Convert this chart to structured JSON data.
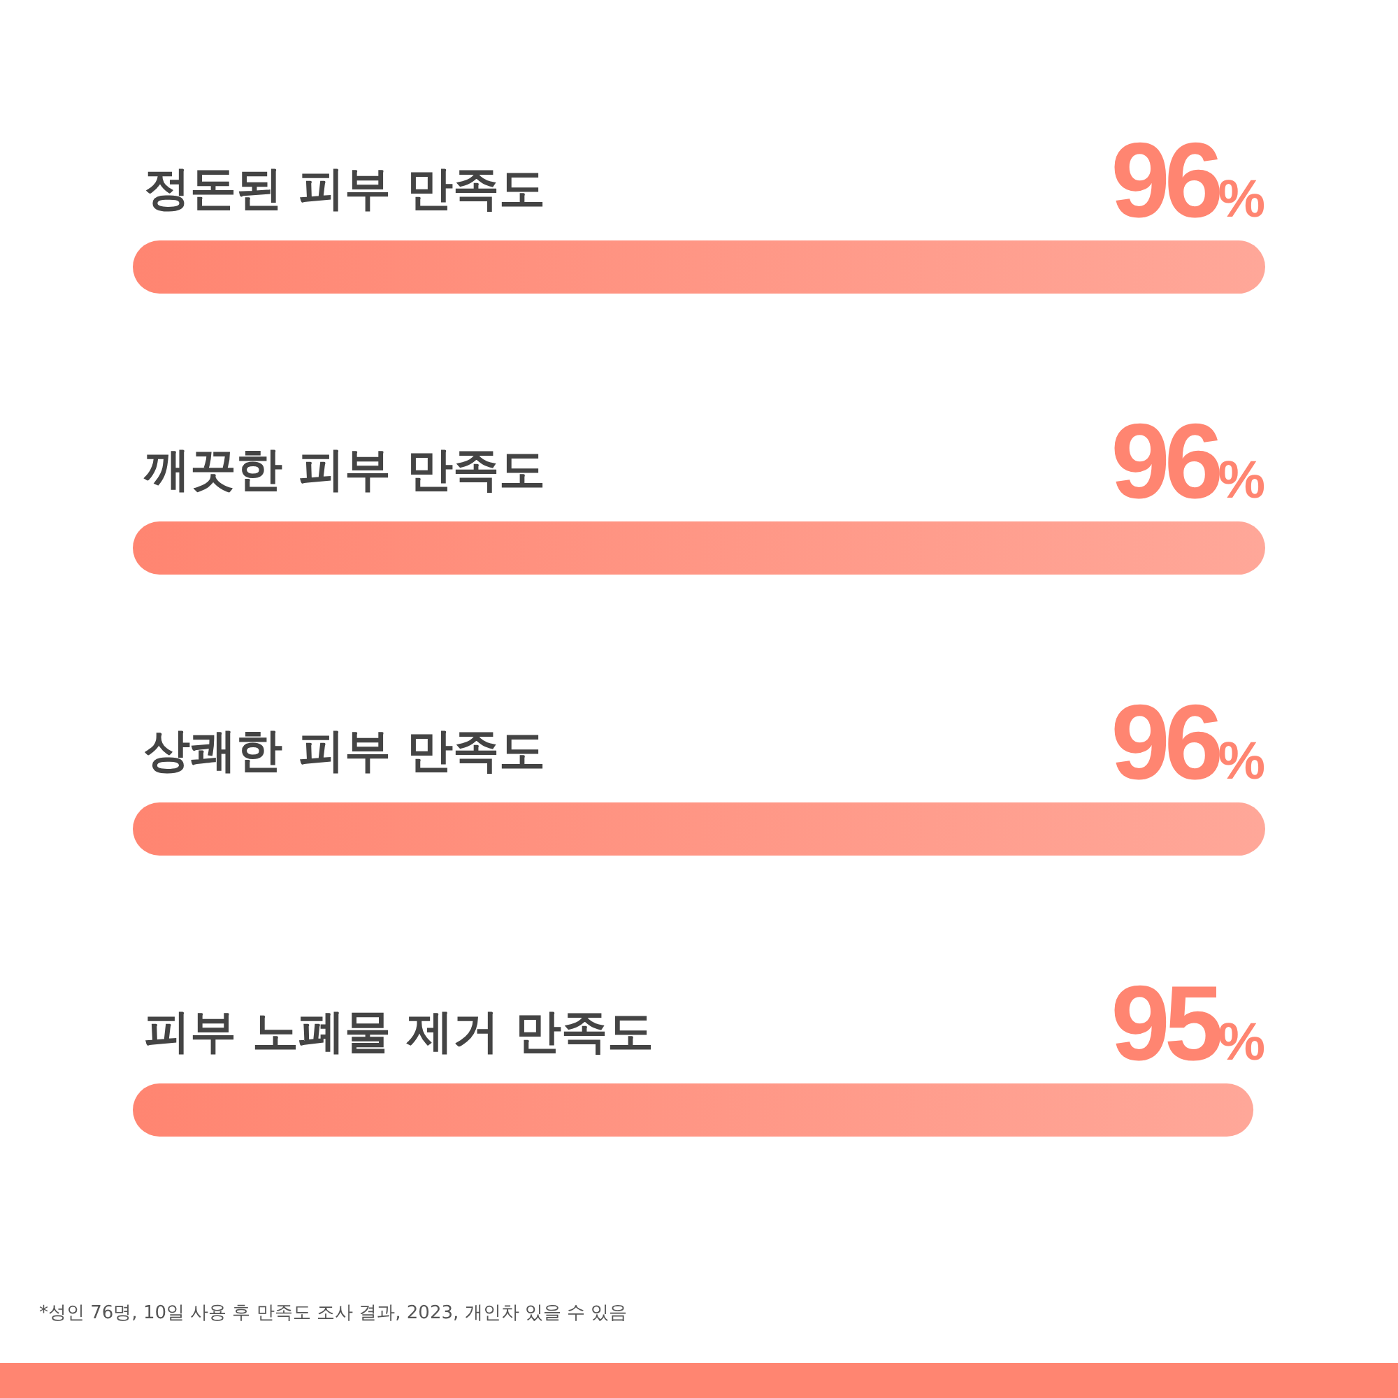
{
  "chart_data": {
    "type": "bar",
    "orientation": "horizontal",
    "categories": [
      "정돈된 피부 만족도",
      "깨끗한 피부 만족도",
      "상쾌한 피부 만족도",
      "피부 노폐물 제거 만족도"
    ],
    "values": [
      96,
      96,
      96,
      95
    ],
    "value_labels": [
      "96%",
      "96%",
      "96%",
      "95%"
    ],
    "color": "#ff8571",
    "tick_labels": "y",
    "grid": false,
    "legend": false,
    "annotations": [
      "*성인 76명, 10일 사용 후 만족도 조사 결과, 2023, 개인차 있을 수 있음"
    ]
  }
}
